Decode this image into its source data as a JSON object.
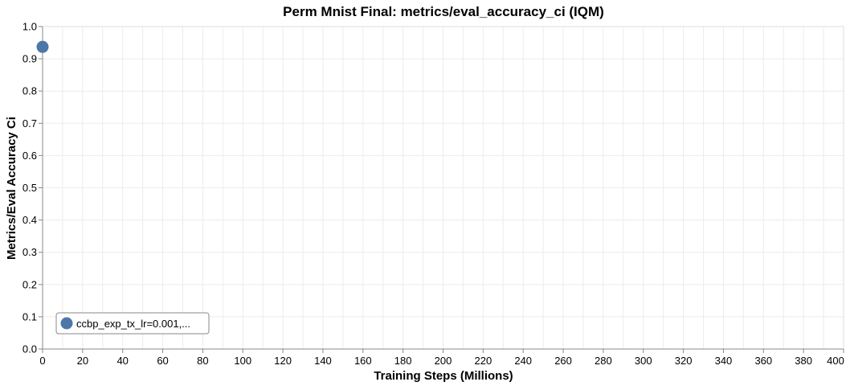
{
  "chart_data": {
    "type": "scatter",
    "title": "Perm Mnist Final: metrics/eval_accuracy_ci (IQM)",
    "xlabel": "Training Steps (Millions)",
    "ylabel": "Metrics/Eval Accuracy Ci",
    "xlim": [
      0,
      400
    ],
    "ylim": [
      0,
      1.0
    ],
    "x_ticks": [
      "0",
      "20",
      "40",
      "60",
      "80",
      "100",
      "120",
      "140",
      "160",
      "180",
      "200",
      "220",
      "240",
      "260",
      "280",
      "300",
      "320",
      "340",
      "360",
      "380",
      "400"
    ],
    "y_ticks": [
      "0.0",
      "0.1",
      "0.2",
      "0.3",
      "0.4",
      "0.5",
      "0.6",
      "0.7",
      "0.8",
      "0.9",
      "1.0"
    ],
    "grid": true,
    "legend_position": "bottom-left",
    "series": [
      {
        "name": "ccbp_exp_tx_lr=0.001,...",
        "color": "#4c78a8",
        "points": [
          {
            "x": 0,
            "y": 0.937
          }
        ]
      }
    ]
  }
}
